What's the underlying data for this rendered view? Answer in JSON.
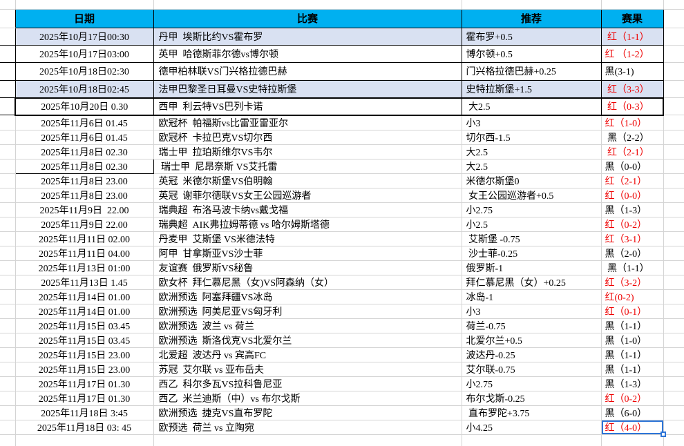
{
  "table": {
    "headers": {
      "date": "日期",
      "match": "比赛",
      "pick": "推荐",
      "result": "赛果"
    },
    "colors": {
      "header_bg": "#00b0f0",
      "shaded_row_bg": "#d9e1f2",
      "red_result": "#ee0000",
      "black_result": "#000000",
      "selection_border": "#2e75d8"
    },
    "rows": [
      {
        "date": "2025年10月17日00:30",
        "match": "丹甲  埃斯比约VS霍布罗",
        "pick": "霍布罗+0.5",
        "result": " 红（1-1）",
        "result_color": "red",
        "shaded": true,
        "black_border": true
      },
      {
        "date": "2025年10月17日03:00",
        "match": "英甲  哈德斯菲尔德vs博尔顿",
        "pick": "博尔顿+0.5",
        "result": "红 （1-2）",
        "result_color": "red",
        "black_border": true
      },
      {
        "date": "2025年10月18日02:30",
        "match": "德甲柏林联VS门兴格拉德巴赫",
        "pick": "门兴格拉德巴赫+0.25",
        "result": "黑(3-1)",
        "result_color": "black",
        "black_border": true
      },
      {
        "date": "2025年10月18日02:45",
        "match": "法甲巴黎圣日耳曼VS史特拉斯堡",
        "pick": "史特拉斯堡+1.5",
        "result": " 红（3-3）",
        "result_color": "red",
        "shaded": true,
        "black_border": true
      },
      {
        "date": "2025年10月20日 0.30",
        "match": "西甲  利云特VS巴列卡诺",
        "pick": " 大2.5",
        "result": " 红（0-3）",
        "result_color": "red",
        "black_border": true,
        "heavy_box": true
      },
      {
        "date": "2025年11月6日 01.45",
        "match": "欧冠杯  帕福斯vs比雷亚雷亚尔",
        "pick": "小3",
        "result": "红（1-0）",
        "result_color": "red"
      },
      {
        "date": "2025年11月6日 01.45",
        "match": "欧冠杯  卡拉巴克VS切尔西",
        "pick": "切尔西-1.5",
        "result": " 黑（2-2）",
        "result_color": "black"
      },
      {
        "date": "2025年11月8日 02.30",
        "match": "瑞士甲  拉珀斯维尔VS韦尔",
        "pick": "大2.5",
        "result": " 红（2-1）",
        "result_color": "red"
      },
      {
        "date": "2025年11月8日 02.30",
        "match": " 瑞士甲  尼昂奈斯 VS艾托雷",
        "pick": "大2.5",
        "result": "黑（0-0）",
        "result_color": "black",
        "date_boxed": true
      },
      {
        "date": "2025年11月8日 23.00",
        "match": "英冠  米德尔斯堡VS伯明翰",
        "pick": "米德尔斯堡0",
        "result": "红（2-1）",
        "result_color": "red"
      },
      {
        "date": "2025年11月8日 23.00",
        "match": "英冠  谢菲尔德联VS女王公园巡游者",
        "pick": " 女王公园巡游者+0.5",
        "result": "红（0-0）",
        "result_color": "red"
      },
      {
        "date": "2025年11月9日  22.00",
        "match": "瑞典超  布洛马波卡纳vs戴戈福",
        "pick": "小2.75",
        "result": "黑（1-3）",
        "result_color": "black"
      },
      {
        "date": "2025年11月9日 22.00",
        "match": "瑞典超  AIK弗拉姆蒂德 vs 哈尔姆斯塔德",
        "pick": "小2.5",
        "result": "红（0-2）",
        "result_color": "red"
      },
      {
        "date": "2025年11月11日 02.00",
        "match": "丹麦甲  艾斯堡 VS米德法特",
        "pick": " 艾斯堡 -0.75",
        "result": "红（3-1）",
        "result_color": "red"
      },
      {
        "date": "2025年11月11日 04.00",
        "match": "阿甲  甘拿斯亚VS沙士菲",
        "pick": " 沙士菲-0.25",
        "result": "黑（2-0）",
        "result_color": "black"
      },
      {
        "date": "2025年11月13日 01:00",
        "match": "友谊赛  俄罗斯VS秘鲁",
        "pick": "俄罗斯-1",
        "result": " 黑（1-1）",
        "result_color": "black"
      },
      {
        "date": "2025年11月13日 1.45",
        "match": "欧女杯  拜仁慕尼黑（女)VS阿森纳（女）",
        "pick": "拜仁慕尼黑（女）+0.25",
        "result": "红（3-2）",
        "result_color": "red"
      },
      {
        "date": "2025年11月14日 01.00",
        "match": "欧洲预选  阿塞拜疆VS冰岛",
        "pick": "冰岛-1",
        "result": "红(0-2)",
        "result_color": "red"
      },
      {
        "date": "2025年11月14日 01.00",
        "match": "欧洲预选  阿美尼亚VS匈牙利",
        "pick": "小3",
        "result": "红（0-1）",
        "result_color": "red"
      },
      {
        "date": "2025年11月15日 03.45",
        "match": "欧洲预选  波兰 vs 荷兰",
        "pick": "荷兰-0.75",
        "result": "黑（1-1）",
        "result_color": "black"
      },
      {
        "date": "2025年11月15日 03.45",
        "match": "欧洲预选  斯洛伐克VS北爱尔兰",
        "pick": "北爱尔兰+0.5",
        "result": "黑（1-0）",
        "result_color": "black"
      },
      {
        "date": "2025年11月15日 23.00",
        "match": "北爱超  波达丹 vs 宾高FC",
        "pick": "波达丹-0.25",
        "result": "黑（1-1）",
        "result_color": "black"
      },
      {
        "date": "2025年11月15日 23.00",
        "match": "苏冠  艾尔联 vs 亚布岳夫",
        "pick": "艾尔联-0.75",
        "result": "黑（1-1）",
        "result_color": "black"
      },
      {
        "date": "2025年11月17日 01.30",
        "match": "西乙  科尔多瓦VS拉科鲁尼亚",
        "pick": "小2.75",
        "result": "黑（1-3）",
        "result_color": "black"
      },
      {
        "date": "2025年11月17日 01.30",
        "match": "西乙  米兰迪斯（中）vs 布尔戈斯",
        "pick": "布尔戈斯-0.25",
        "result": "红（0-2）",
        "result_color": "red"
      },
      {
        "date": "2025年11月18日 3:45",
        "match": "欧洲预选  捷克VS直布罗陀",
        "pick": " 直布罗陀+3.75",
        "result": "黑（6-0）",
        "result_color": "black"
      },
      {
        "date": "2025年11月18日 03: 45",
        "match": "欧预选  荷兰 vs 立陶宛",
        "pick": "小4.25",
        "result": "红（4-0）",
        "result_color": "red",
        "selected": true
      }
    ]
  }
}
